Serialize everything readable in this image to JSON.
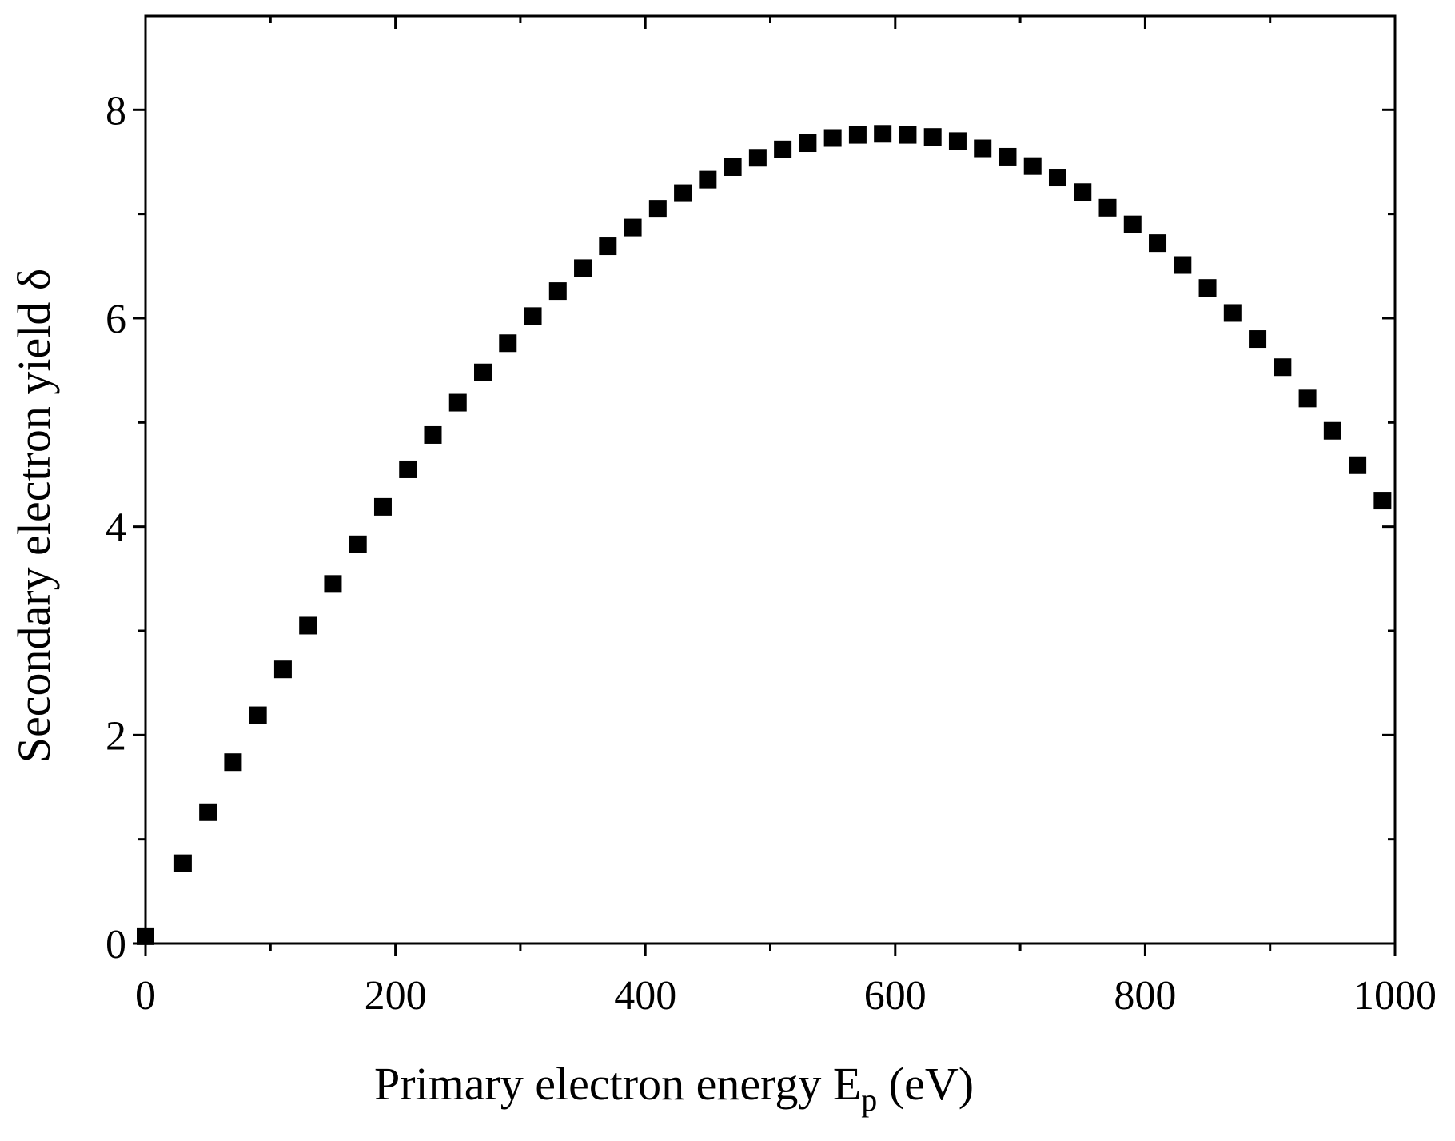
{
  "chart_data": {
    "type": "scatter",
    "title": "",
    "xlabel": {
      "main": "Primary electron energy E",
      "subscript": "p",
      "suffix": " (eV)"
    },
    "ylabel": "Secondary electron yield δ",
    "xlim": [
      0,
      1000
    ],
    "ylim": [
      0,
      8.9
    ],
    "xticks": [
      0,
      200,
      400,
      600,
      800,
      1000
    ],
    "xtick_labels": [
      "0",
      "200",
      "400",
      "600",
      "800",
      "1000"
    ],
    "yticks": [
      0,
      2,
      4,
      6,
      8
    ],
    "ytick_labels": [
      "0",
      "2",
      "4",
      "6",
      "8"
    ],
    "x_minor_step": 100,
    "y_minor_step": 1,
    "grid": false,
    "marker": "square",
    "color": "#000000",
    "series": [
      {
        "name": "Secondary electron yield",
        "x": [
          0,
          30,
          50,
          70,
          90,
          110,
          130,
          150,
          170,
          190,
          210,
          230,
          250,
          270,
          290,
          310,
          330,
          350,
          370,
          390,
          410,
          430,
          450,
          470,
          490,
          510,
          530,
          550,
          570,
          590,
          610,
          630,
          650,
          670,
          690,
          710,
          730,
          750,
          770,
          790,
          810,
          830,
          850,
          870,
          890,
          910,
          930,
          950,
          970,
          990
        ],
        "y": [
          0.07,
          0.77,
          1.26,
          1.74,
          2.19,
          2.63,
          3.05,
          3.45,
          3.83,
          4.19,
          4.55,
          4.88,
          5.19,
          5.48,
          5.76,
          6.02,
          6.26,
          6.48,
          6.69,
          6.87,
          7.05,
          7.2,
          7.33,
          7.45,
          7.54,
          7.62,
          7.68,
          7.73,
          7.76,
          7.77,
          7.76,
          7.74,
          7.7,
          7.63,
          7.55,
          7.46,
          7.35,
          7.21,
          7.06,
          6.9,
          6.72,
          6.51,
          6.29,
          6.05,
          5.8,
          5.53,
          5.23,
          4.92,
          4.59,
          4.25
        ]
      }
    ]
  }
}
